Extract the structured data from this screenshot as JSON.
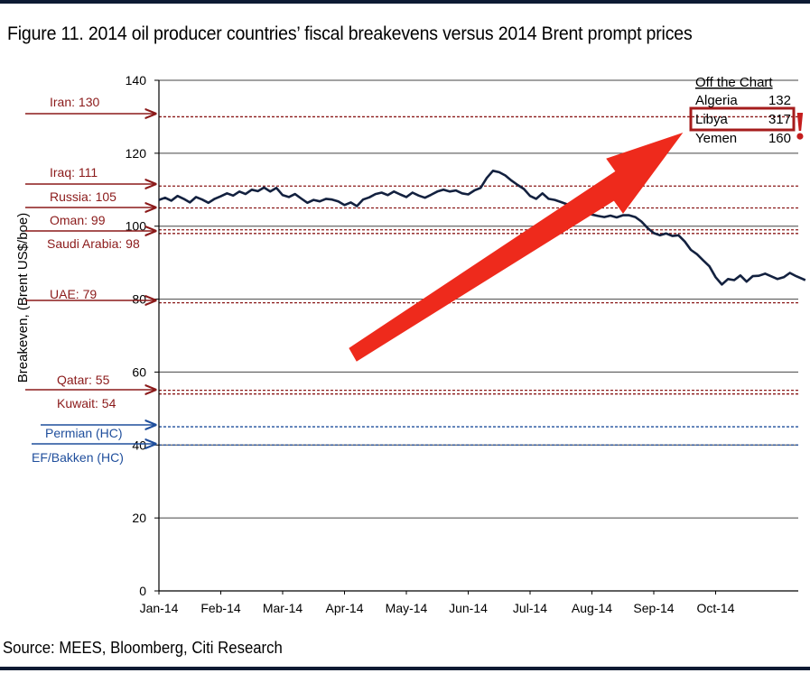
{
  "title": "Figure 11. 2014 oil producer countries’ fiscal breakevens versus 2014 Brent prompt prices",
  "source": "Source: MEES, Bloomberg, Citi Research",
  "chart_data": {
    "type": "line",
    "ylabel": "Breakeven, (Brent US$/boe)",
    "xlabel": "",
    "ylim": [
      0,
      140
    ],
    "yticks": [
      0,
      20,
      40,
      60,
      80,
      100,
      120,
      140
    ],
    "xticks": [
      "Jan-14",
      "Feb-14",
      "Mar-14",
      "Apr-14",
      "May-14",
      "Jun-14",
      "Jul-14",
      "Aug-14",
      "Sep-14",
      "Oct-14"
    ],
    "grid": "horizontal",
    "series": [
      {
        "x": [
          0,
          0.1,
          0.2,
          0.3,
          0.4,
          0.5,
          0.6,
          0.7,
          0.8,
          0.9,
          1.0,
          1.1,
          1.2,
          1.3,
          1.4,
          1.5,
          1.6,
          1.7,
          1.8,
          1.9,
          2.0,
          2.1,
          2.2,
          2.3,
          2.4,
          2.5,
          2.6,
          2.7,
          2.8,
          2.9,
          3.0,
          3.1,
          3.2,
          3.3,
          3.4,
          3.5,
          3.6,
          3.7,
          3.8,
          3.9,
          4.0,
          4.1,
          4.2,
          4.3,
          4.4,
          4.5,
          4.6,
          4.7,
          4.8,
          4.9,
          5.0,
          5.1,
          5.2,
          5.3,
          5.4,
          5.5,
          5.6,
          5.7,
          5.8,
          5.9,
          6.0,
          6.1,
          6.2,
          6.3,
          6.4,
          6.5,
          6.6,
          6.7,
          6.8,
          6.9,
          7.0,
          7.1,
          7.2,
          7.3,
          7.4,
          7.5,
          7.6,
          7.7,
          7.8,
          7.9,
          8.0,
          8.1,
          8.2,
          8.3,
          8.4,
          8.5,
          8.6,
          8.7,
          8.8,
          8.9,
          9.0,
          9.1,
          9.2,
          9.3,
          9.4,
          9.5,
          9.6,
          9.7,
          9.8,
          10.0,
          10.1,
          10.2,
          10.3,
          10.45
        ],
        "values": [
          107.2,
          107.8,
          107.0,
          108.3,
          107.5,
          106.5,
          108.0,
          107.3,
          106.4,
          107.5,
          108.2,
          109.0,
          108.4,
          109.5,
          108.8,
          110.0,
          109.6,
          110.6,
          109.5,
          110.5,
          108.5,
          108.0,
          108.8,
          107.6,
          106.4,
          107.2,
          106.8,
          107.5,
          107.3,
          106.8,
          105.8,
          106.5,
          105.5,
          107.3,
          107.9,
          108.8,
          109.2,
          108.5,
          109.5,
          108.7,
          108.0,
          109.2,
          108.4,
          107.8,
          108.6,
          109.5,
          110.0,
          109.5,
          109.8,
          109.0,
          108.7,
          109.8,
          110.5,
          113.2,
          115.2,
          114.8,
          113.9,
          112.5,
          111.3,
          110.2,
          108.3,
          107.5,
          109.0,
          107.5,
          107.2,
          106.6,
          106.0,
          105.2,
          104.6,
          103.8,
          103.2,
          102.8,
          102.5,
          102.9,
          102.4,
          103.0,
          103.0,
          102.5,
          101.3,
          99.5,
          98.1,
          97.5,
          98.0,
          97.3,
          97.5,
          95.8,
          93.5,
          92.3,
          90.6,
          89.0,
          86.0,
          84.0,
          85.5,
          85.2,
          86.5,
          84.8,
          86.3,
          86.4,
          87.0,
          85.5,
          86.0,
          87.2,
          86.3,
          85.2
        ]
      }
    ],
    "reference_lines": [
      {
        "label": "Iran: 130",
        "value": 130,
        "group": "producer"
      },
      {
        "label": "Iraq: 111",
        "value": 111,
        "group": "producer"
      },
      {
        "label": "Russia: 105",
        "value": 105,
        "group": "producer"
      },
      {
        "label": "Oman: 99",
        "value": 99,
        "group": "producer"
      },
      {
        "label": "Saudi Arabia: 98",
        "value": 98,
        "group": "producer"
      },
      {
        "label": "UAE: 79",
        "value": 79,
        "group": "producer"
      },
      {
        "label": "Qatar: 55",
        "value": 55,
        "group": "producer"
      },
      {
        "label": "Kuwait: 54",
        "value": 54,
        "group": "producer"
      },
      {
        "label": "Permian (HC)",
        "value": 45,
        "group": "shale"
      },
      {
        "label": "EF/Bakken (HC)",
        "value": 40,
        "group": "shale"
      }
    ],
    "off_chart": {
      "title": "Off the Chart",
      "rows": [
        {
          "name": "Algeria",
          "value": "132",
          "highlight": false
        },
        {
          "name": "Libya",
          "value": "317",
          "highlight": true
        },
        {
          "name": "Yemen",
          "value": "160",
          "highlight": false
        }
      ],
      "alert_mark": "!"
    },
    "colors": {
      "price_line": "#13213f",
      "producer": "#8b1a1a",
      "shale": "#1f4e9c",
      "arrow": "#ee2a1c",
      "highlight_box": "#a51c1c",
      "gridline": "#444444"
    }
  }
}
